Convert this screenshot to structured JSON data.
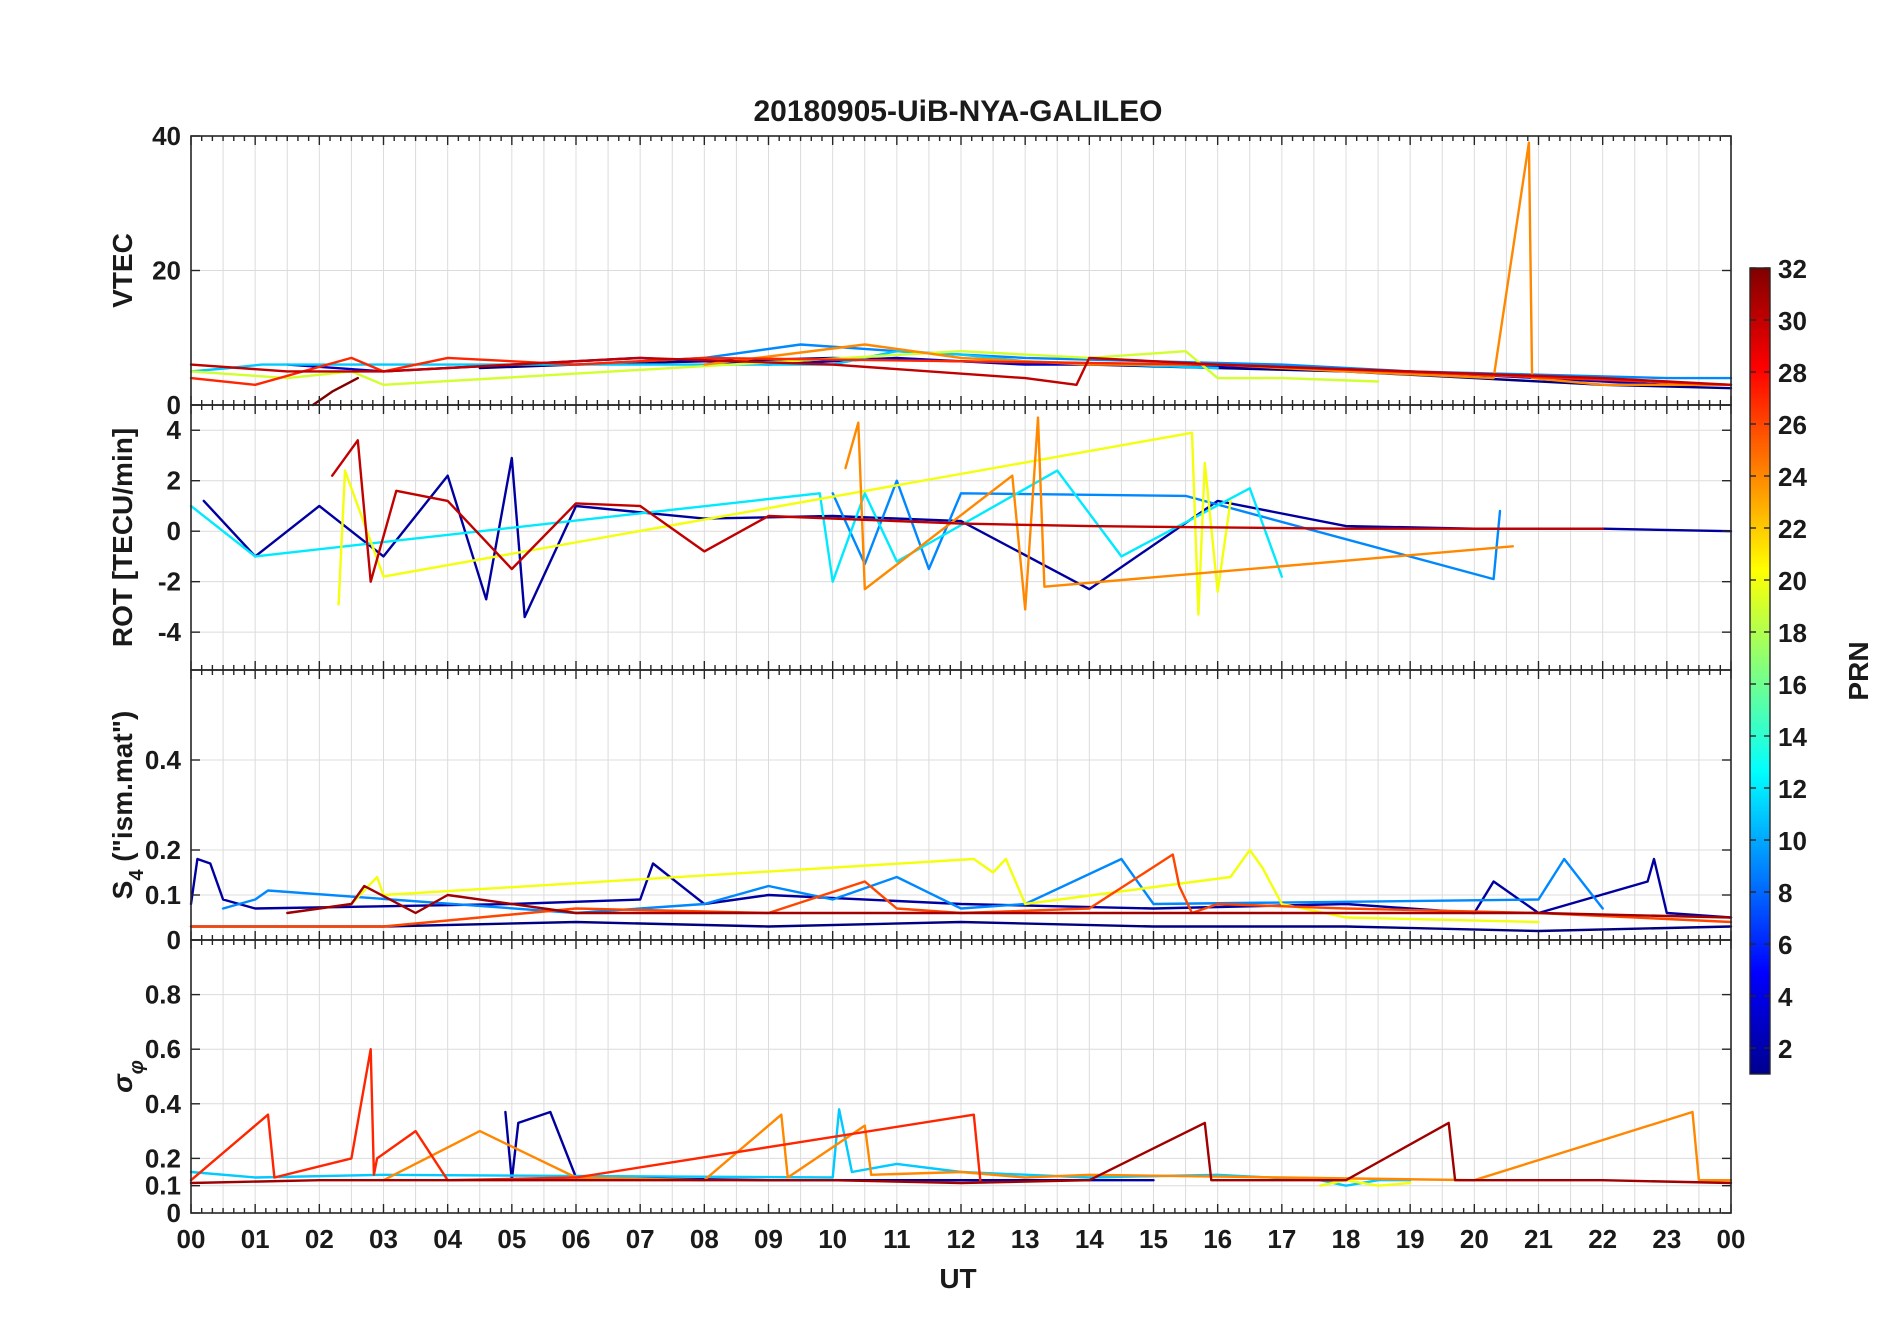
{
  "chart_data": {
    "type": "line",
    "title": "20180905-UiB-NYA-GALILEO",
    "xlabel": "UT",
    "x_ticks": [
      "00",
      "01",
      "02",
      "03",
      "04",
      "05",
      "06",
      "07",
      "08",
      "09",
      "10",
      "11",
      "12",
      "13",
      "14",
      "15",
      "16",
      "17",
      "18",
      "19",
      "20",
      "21",
      "22",
      "23",
      "00"
    ],
    "grid": true,
    "colorbar": {
      "label": "PRN",
      "range": [
        1,
        32
      ],
      "ticks": [
        "2",
        "4",
        "6",
        "8",
        "10",
        "12",
        "14",
        "16",
        "18",
        "20",
        "22",
        "24",
        "26",
        "28",
        "30",
        "32"
      ],
      "colormap": "jet",
      "placement": "right"
    },
    "panels": [
      {
        "ylabel": "VTEC",
        "ylim": [
          0,
          40
        ],
        "y_ticks": [
          "0",
          "20",
          "40"
        ],
        "series": [
          {
            "prn": 1,
            "x": [
              4.5,
              6,
              8,
              10,
              12,
              14,
              16,
              18,
              20,
              22,
              24
            ],
            "y": [
              5.5,
              6,
              6.5,
              7,
              6.5,
              6,
              5.5,
              5,
              4,
              3,
              2.5
            ]
          },
          {
            "prn": 3,
            "x": [
              1.5,
              3,
              5,
              7,
              9,
              11,
              13,
              15,
              17,
              19,
              21,
              23
            ],
            "y": [
              6,
              5,
              6,
              7,
              6,
              7,
              6,
              6,
              5.5,
              5,
              4,
              3
            ]
          },
          {
            "prn": 9,
            "x": [
              6,
              8,
              9.5,
              11,
              13,
              15,
              17,
              19,
              21,
              23,
              24
            ],
            "y": [
              6,
              7,
              9,
              8,
              7,
              6.5,
              6,
              5,
              4.5,
              4,
              4
            ]
          },
          {
            "prn": 11,
            "x": [
              0,
              0.6,
              1.1,
              10,
              11,
              12,
              13,
              14.5,
              16
            ],
            "y": [
              5,
              5.5,
              6,
              6,
              8,
              7.5,
              6.5,
              6,
              5.5
            ]
          },
          {
            "prn": 19,
            "x": [
              0,
              1.5,
              2.5,
              3,
              12,
              14,
              15.5,
              16,
              17,
              18.5
            ],
            "y": [
              5,
              4,
              5,
              3,
              8,
              7,
              8,
              4,
              4,
              3.5
            ]
          },
          {
            "prn": 24,
            "x": [
              8,
              10.5,
              12,
              14,
              16,
              18,
              20.3,
              20.85,
              20.9,
              22,
              24
            ],
            "y": [
              6,
              9,
              7,
              6,
              6,
              5,
              4,
              39,
              4,
              3,
              3
            ]
          },
          {
            "prn": 27,
            "x": [
              0,
              1,
              2.5,
              3,
              4,
              6,
              8,
              12,
              16,
              20,
              24
            ],
            "y": [
              4,
              3,
              7,
              5,
              7,
              6,
              7,
              6.5,
              6,
              4.5,
              3
            ]
          },
          {
            "prn": 30,
            "x": [
              0,
              1.5,
              3,
              5,
              7,
              10,
              13,
              13.8,
              14,
              16,
              19,
              22,
              24
            ],
            "y": [
              6,
              5,
              5,
              6,
              7,
              6,
              4,
              3,
              7,
              6,
              5,
              4,
              3
            ]
          },
          {
            "prn": 32,
            "x": [
              1.9,
              2.2,
              2.6
            ],
            "y": [
              0,
              2,
              4
            ]
          }
        ]
      },
      {
        "ylabel": "ROT [TECU/min]",
        "ylim": [
          -5.5,
          5
        ],
        "y_ticks": [
          "-4",
          "-2",
          "0",
          "2",
          "4"
        ],
        "series": [
          {
            "prn": 2,
            "x": [
              0.2,
              1,
              2,
              3,
              4,
              4.6,
              5,
              5.2,
              6,
              8,
              10,
              12,
              14,
              16,
              18,
              20,
              22,
              24
            ],
            "y": [
              1.2,
              -1,
              1,
              -1,
              2.2,
              -2.7,
              2.9,
              -3.4,
              1,
              0.5,
              0.6,
              0.4,
              -2.3,
              1.2,
              0.2,
              0.1,
              0.1,
              0
            ]
          },
          {
            "prn": 9,
            "x": [
              10,
              10.5,
              11,
              11.5,
              12,
              15.5,
              20.3,
              20.4
            ],
            "y": [
              1.5,
              -1.3,
              2,
              -1.5,
              1.5,
              1.4,
              -1.9,
              0.8
            ]
          },
          {
            "prn": 12,
            "x": [
              0,
              1,
              9.8,
              10,
              10.5,
              11,
              13.5,
              14.5,
              16.5,
              17
            ],
            "y": [
              1,
              -1,
              1.5,
              -2,
              1.5,
              -1.2,
              2.4,
              -1,
              1.7,
              -1.8
            ]
          },
          {
            "prn": 20,
            "x": [
              2.3,
              2.4,
              3,
              15.6,
              15.7,
              15.8,
              16,
              16.2
            ],
            "y": [
              -2.9,
              2.4,
              -1.8,
              3.9,
              -3.3,
              2.7,
              -2.4,
              1.2
            ]
          },
          {
            "prn": 24,
            "x": [
              10.2,
              10.4,
              10.5,
              12.8,
              13,
              13.2,
              13.3,
              20.6
            ],
            "y": [
              2.5,
              4.3,
              -2.3,
              2.2,
              -3.1,
              4.5,
              -2.2,
              -0.6
            ]
          },
          {
            "prn": 30,
            "x": [
              2.2,
              2.6,
              2.8,
              3.2,
              4,
              5,
              6,
              7,
              8,
              9,
              12,
              14,
              18,
              22
            ],
            "y": [
              2.2,
              3.6,
              -2,
              1.6,
              1.2,
              -1.5,
              1.1,
              1,
              -0.8,
              0.6,
              0.3,
              0.2,
              0.1,
              0.1
            ]
          }
        ]
      },
      {
        "ylabel": "S_4 (\"ism.mat\")",
        "ylabel_main": "S",
        "ylabel_sub": "4",
        "ylabel_tail": " (\"ism.mat\")",
        "ylim": [
          0,
          0.6
        ],
        "y_ticks": [
          "0",
          "0.1",
          "0.2",
          "0.4"
        ],
        "series": [
          {
            "prn": 1,
            "x": [
              0,
              3,
              6,
              9,
              12,
              15,
              18,
              21,
              24
            ],
            "y": [
              0.03,
              0.03,
              0.04,
              0.03,
              0.04,
              0.03,
              0.03,
              0.02,
              0.03
            ]
          },
          {
            "prn": 2,
            "x": [
              0,
              0.1,
              0.3,
              0.5,
              1,
              5,
              7,
              7.2,
              8,
              9,
              12,
              15,
              18,
              20,
              20.3,
              21,
              22.7,
              22.8,
              23,
              24
            ],
            "y": [
              0.08,
              0.18,
              0.17,
              0.09,
              0.07,
              0.08,
              0.09,
              0.17,
              0.08,
              0.1,
              0.08,
              0.07,
              0.08,
              0.06,
              0.13,
              0.06,
              0.13,
              0.18,
              0.06,
              0.05
            ]
          },
          {
            "prn": 9,
            "x": [
              0.5,
              1,
              1.2,
              6,
              8,
              9,
              10,
              11,
              12,
              13,
              14.5,
              15,
              21,
              21.4,
              22
            ],
            "y": [
              0.07,
              0.09,
              0.11,
              0.06,
              0.08,
              0.12,
              0.09,
              0.14,
              0.07,
              0.08,
              0.18,
              0.08,
              0.09,
              0.18,
              0.07
            ]
          },
          {
            "prn": 20,
            "x": [
              2.5,
              2.9,
              3,
              12.2,
              12.5,
              12.7,
              13,
              16.2,
              16.5,
              16.7,
              17,
              18,
              21
            ],
            "y": [
              0.08,
              0.14,
              0.1,
              0.18,
              0.15,
              0.18,
              0.08,
              0.14,
              0.2,
              0.16,
              0.08,
              0.05,
              0.04
            ]
          },
          {
            "prn": 26,
            "x": [
              0,
              3,
              6,
              9,
              10.5,
              11,
              12,
              14,
              15.3,
              15.4,
              15.6,
              16,
              18,
              21,
              24
            ],
            "y": [
              0.03,
              0.03,
              0.07,
              0.06,
              0.13,
              0.07,
              0.06,
              0.07,
              0.19,
              0.12,
              0.06,
              0.08,
              0.07,
              0.06,
              0.04
            ]
          },
          {
            "prn": 31,
            "x": [
              1.5,
              2.5,
              2.7,
              3.5,
              4,
              6,
              9,
              12,
              15,
              18,
              21,
              24
            ],
            "y": [
              0.06,
              0.08,
              0.12,
              0.06,
              0.1,
              0.06,
              0.06,
              0.06,
              0.06,
              0.06,
              0.06,
              0.05
            ]
          }
        ]
      },
      {
        "ylabel": "σ_φ",
        "ylabel_main": "σ",
        "ylabel_sub": "φ",
        "ylim": [
          0,
          1
        ],
        "y_ticks": [
          "0",
          "0.1",
          "0.2",
          "0.4",
          "0.6",
          "0.8"
        ],
        "series": [
          {
            "prn": 2,
            "x": [
              4.9,
              5,
              5.1,
              5.6,
              6,
              9,
              12,
              15
            ],
            "y": [
              0.37,
              0.12,
              0.33,
              0.37,
              0.13,
              0.12,
              0.12,
              0.12
            ]
          },
          {
            "prn": 11,
            "x": [
              0,
              1,
              3,
              10,
              10.1,
              10.3,
              11,
              12,
              14,
              16,
              17.6,
              18,
              18.5,
              19
            ],
            "y": [
              0.15,
              0.13,
              0.14,
              0.13,
              0.38,
              0.15,
              0.18,
              0.15,
              0.13,
              0.14,
              0.12,
              0.1,
              0.12,
              0.12
            ]
          },
          {
            "prn": 20,
            "x": [
              17.6,
              18,
              18.5,
              19
            ],
            "y": [
              0.1,
              0.12,
              0.1,
              0.11
            ]
          },
          {
            "prn": 24,
            "x": [
              3,
              4.5,
              6,
              8,
              9.2,
              9.3,
              10.5,
              10.6,
              12,
              13,
              14,
              17,
              20,
              23.4,
              23.5,
              24
            ],
            "y": [
              0.12,
              0.3,
              0.13,
              0.12,
              0.36,
              0.13,
              0.32,
              0.14,
              0.15,
              0.13,
              0.14,
              0.13,
              0.12,
              0.37,
              0.12,
              0.12
            ]
          },
          {
            "prn": 27,
            "x": [
              0,
              1.2,
              1.3,
              2.5,
              2.8,
              2.85,
              2.9,
              3.5,
              4,
              6,
              12.2,
              12.3
            ],
            "y": [
              0.12,
              0.36,
              0.13,
              0.2,
              0.6,
              0.14,
              0.2,
              0.3,
              0.12,
              0.13,
              0.36,
              0.12
            ]
          },
          {
            "prn": 31,
            "x": [
              0,
              2,
              4,
              6,
              8,
              10,
              12,
              14,
              15.8,
              15.9,
              18,
              19.6,
              19.7,
              22,
              24
            ],
            "y": [
              0.11,
              0.12,
              0.12,
              0.12,
              0.12,
              0.12,
              0.11,
              0.12,
              0.33,
              0.12,
              0.12,
              0.33,
              0.12,
              0.12,
              0.11
            ]
          }
        ]
      }
    ]
  }
}
